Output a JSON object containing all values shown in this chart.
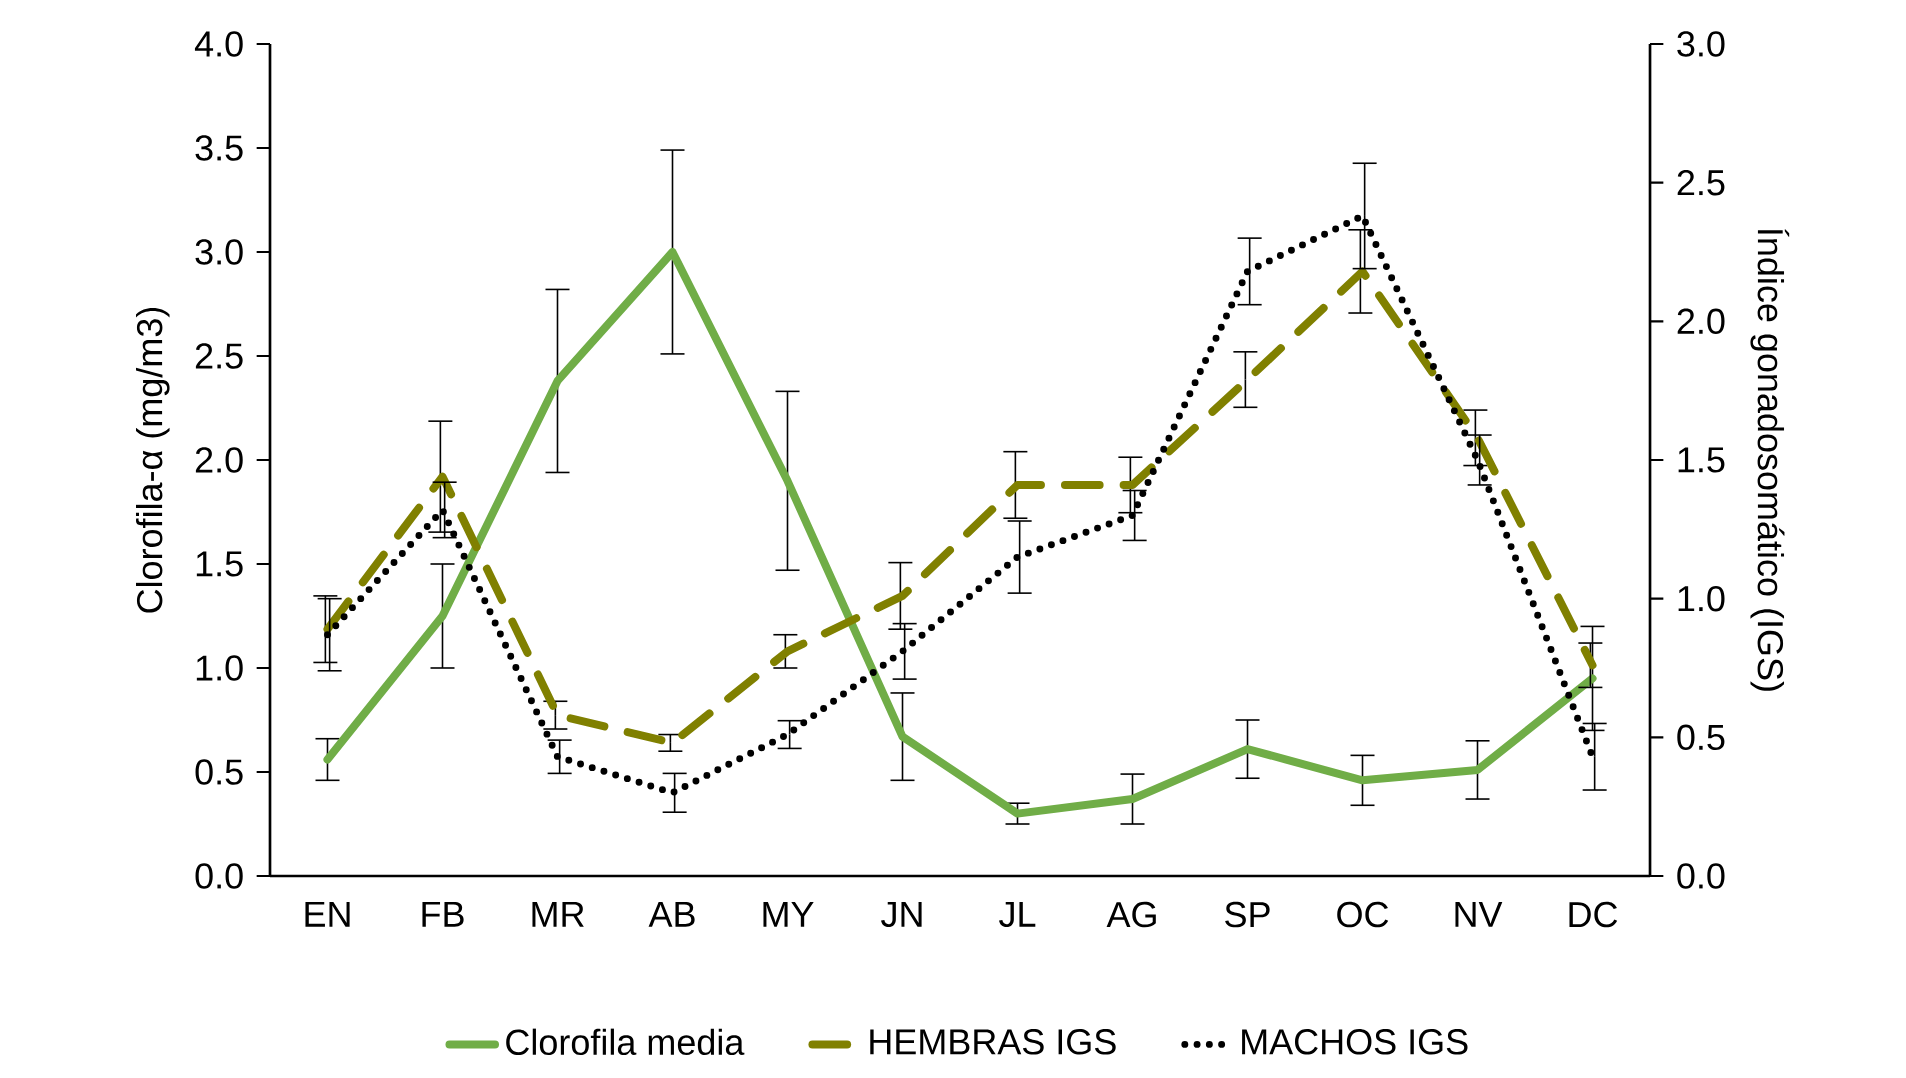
{
  "chart_data": {
    "type": "line",
    "xlabel": null,
    "ylabel": "Clorofila-α (mg/m3)",
    "y2label": "Índice gonadosomático (IGS)",
    "categories": [
      "EN",
      "FB",
      "MR",
      "AB",
      "MY",
      "JN",
      "JL",
      "AG",
      "SP",
      "OC",
      "NV",
      "DC"
    ],
    "series": [
      {
        "name": "Clorofila media",
        "color": "#70ad47",
        "line_style": "solid",
        "values": [
          0.56,
          1.25,
          2.38,
          3.0,
          1.9,
          0.67,
          0.3,
          0.37,
          0.61,
          0.46,
          0.51,
          0.95
        ],
        "errors": [
          0.1,
          0.25,
          0.44,
          0.49,
          0.43,
          0.21,
          0.05,
          0.12,
          0.14,
          0.12,
          0.14,
          0.25
        ]
      },
      {
        "name": "HEMBRAS IGS",
        "color": "#808000",
        "line_style": "dashed",
        "axis": "y2",
        "values": [
          0.89,
          1.44,
          0.58,
          0.48,
          0.81,
          1.01,
          1.41,
          1.41,
          1.79,
          2.18,
          1.58,
          0.76
        ],
        "errors": [
          0.12,
          0.2,
          0.05,
          0.03,
          0.06,
          0.12,
          0.12,
          0.1,
          0.1,
          0.15,
          0.1,
          0.08
        ]
      },
      {
        "name": "MACHOS IGS",
        "color": "#000000",
        "line_style": "dotted",
        "axis": "y2",
        "values": [
          0.87,
          1.32,
          0.43,
          0.3,
          0.51,
          0.81,
          1.15,
          1.3,
          2.18,
          2.38,
          1.5,
          0.43
        ],
        "errors": [
          0.13,
          0.1,
          0.06,
          0.07,
          0.05,
          0.1,
          0.13,
          0.09,
          0.12,
          0.19,
          0.09,
          0.12
        ]
      }
    ],
    "ylim": [
      0,
      4
    ],
    "yticks": [
      {
        "value": 0,
        "label": "0.0"
      },
      0.5,
      {
        "value": 1,
        "label": "1.0"
      },
      1.5,
      {
        "value": 2,
        "label": "2.0"
      },
      2.5,
      {
        "value": 3,
        "label": "3.0"
      },
      3.5,
      {
        "value": 4,
        "label": "4.0"
      }
    ],
    "y2lim": [
      0,
      3
    ],
    "y2ticks": [
      {
        "value": 0,
        "label": "0.0"
      },
      0.5,
      {
        "value": 1,
        "label": "1.0"
      },
      1.5,
      {
        "value": 2,
        "label": "2.0"
      },
      2.5,
      {
        "value": 3,
        "label": "3.0"
      }
    ],
    "legend": "bottom",
    "grid": false,
    "marker": "none"
  }
}
